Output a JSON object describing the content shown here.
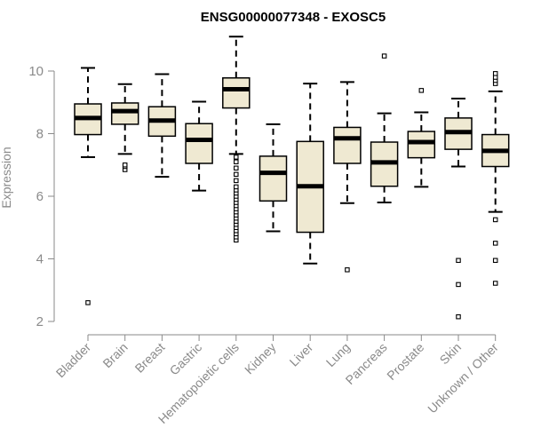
{
  "chart_data": {
    "type": "boxplot",
    "title": "ENSG00000077348 - EXOSC5",
    "xlabel": "",
    "ylabel": "Expression",
    "ylim": [
      2,
      11.2
    ],
    "yticks": [
      2,
      4,
      6,
      8,
      10
    ],
    "grid": false,
    "box_fill": "#efe9d2",
    "box_stroke": "#000000",
    "axis_color": "#8a8a8a",
    "categories": [
      "Bladder",
      "Brain",
      "Breast",
      "Gastric",
      "Hematopoietic cells",
      "Kidney",
      "Liver",
      "Lung",
      "Pancreas",
      "Prostate",
      "Skin",
      "Unknown / Other"
    ],
    "boxes": [
      {
        "category": "Bladder",
        "whisker_low": 7.25,
        "q1": 7.97,
        "median": 8.5,
        "q3": 8.95,
        "whisker_high": 10.1,
        "outliers": [
          2.6
        ]
      },
      {
        "category": "Brain",
        "whisker_low": 7.35,
        "q1": 8.3,
        "median": 8.72,
        "q3": 8.98,
        "whisker_high": 9.58,
        "outliers": [
          6.85,
          6.95,
          7.0
        ]
      },
      {
        "category": "Breast",
        "whisker_low": 6.62,
        "q1": 7.92,
        "median": 8.42,
        "q3": 8.86,
        "whisker_high": 9.9,
        "outliers": []
      },
      {
        "category": "Gastric",
        "whisker_low": 6.18,
        "q1": 7.05,
        "median": 7.8,
        "q3": 8.32,
        "whisker_high": 9.02,
        "outliers": []
      },
      {
        "category": "Hematopoietic cells",
        "whisker_low": 7.35,
        "q1": 8.82,
        "median": 9.42,
        "q3": 9.78,
        "whisker_high": 11.1,
        "outliers": [
          4.6,
          4.7,
          4.8,
          4.9,
          5.0,
          5.1,
          5.2,
          5.3,
          5.4,
          5.5,
          5.6,
          5.7,
          5.8,
          5.9,
          6.0,
          6.1,
          6.2,
          6.3,
          6.5,
          6.7,
          6.9,
          7.1,
          7.25
        ]
      },
      {
        "category": "Kidney",
        "whisker_low": 4.88,
        "q1": 5.85,
        "median": 6.75,
        "q3": 7.28,
        "whisker_high": 8.3,
        "outliers": []
      },
      {
        "category": "Liver",
        "whisker_low": 3.85,
        "q1": 4.85,
        "median": 6.32,
        "q3": 7.75,
        "whisker_high": 9.6,
        "outliers": []
      },
      {
        "category": "Lung",
        "whisker_low": 5.78,
        "q1": 7.05,
        "median": 7.85,
        "q3": 8.2,
        "whisker_high": 9.65,
        "outliers": [
          3.65
        ]
      },
      {
        "category": "Pancreas",
        "whisker_low": 5.8,
        "q1": 6.32,
        "median": 7.08,
        "q3": 7.73,
        "whisker_high": 8.65,
        "outliers": [
          10.48
        ]
      },
      {
        "category": "Prostate",
        "whisker_low": 6.3,
        "q1": 7.23,
        "median": 7.73,
        "q3": 8.07,
        "whisker_high": 8.68,
        "outliers": [
          9.38
        ]
      },
      {
        "category": "Skin",
        "whisker_low": 6.95,
        "q1": 7.5,
        "median": 8.05,
        "q3": 8.5,
        "whisker_high": 9.12,
        "outliers": [
          2.15,
          3.18,
          3.95
        ]
      },
      {
        "category": "Unknown / Other",
        "whisker_low": 5.5,
        "q1": 6.95,
        "median": 7.45,
        "q3": 7.97,
        "whisker_high": 9.35,
        "outliers": [
          3.22,
          3.95,
          4.5,
          5.25,
          9.6,
          9.7,
          9.8,
          9.92
        ]
      }
    ]
  }
}
